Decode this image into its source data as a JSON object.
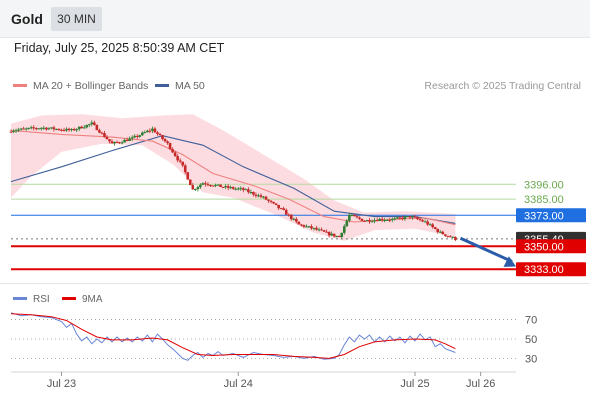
{
  "header": {
    "title": "Gold",
    "timeframe": "30 MIN",
    "timestamp": "Friday, July 25, 2025 8:50:39 AM CET"
  },
  "legend": {
    "ma20_label": "MA 20 + Bollinger Bands",
    "ma50_label": "MA 50",
    "copyright": "Research © 2025 Trading Central",
    "rsi_label": "RSI",
    "rsi_ma_label": "9MA"
  },
  "colors": {
    "up": "#2e7d32",
    "down": "#c62828",
    "ma20": "#f08080",
    "ma50": "#3f5f9a",
    "band": "#fbd0d5",
    "resistance": "#b5d9a0",
    "pivot": "#1f6fe0",
    "support": "#e00000",
    "current": "#303030",
    "rsi": "#6a86d8",
    "rsi_ma": "#e00000"
  },
  "chart_data": [
    {
      "type": "candlestick",
      "title": "Gold",
      "timeframe": "30 MIN",
      "x_ticks": [
        "Jul 23",
        "Jul 24",
        "Jul 25",
        "Jul 26"
      ],
      "close_path": [
        {
          "x": 0,
          "close": 3436
        },
        {
          "x": 6,
          "close": 3438
        },
        {
          "x": 12,
          "close": 3436
        },
        {
          "x": 16,
          "close": 3441
        },
        {
          "x": 20,
          "close": 3426
        },
        {
          "x": 24,
          "close": 3430
        },
        {
          "x": 28,
          "close": 3437
        },
        {
          "x": 31,
          "close": 3426
        },
        {
          "x": 34,
          "close": 3409
        },
        {
          "x": 36,
          "close": 3392
        },
        {
          "x": 38,
          "close": 3397
        },
        {
          "x": 42,
          "close": 3394
        },
        {
          "x": 46,
          "close": 3392
        },
        {
          "x": 50,
          "close": 3386
        },
        {
          "x": 54,
          "close": 3376
        },
        {
          "x": 57,
          "close": 3366
        },
        {
          "x": 60,
          "close": 3363
        },
        {
          "x": 63,
          "close": 3359
        },
        {
          "x": 65,
          "close": 3357
        },
        {
          "x": 67,
          "close": 3373
        },
        {
          "x": 70,
          "close": 3369
        },
        {
          "x": 73,
          "close": 3370
        },
        {
          "x": 76,
          "close": 3370
        },
        {
          "x": 79,
          "close": 3372
        },
        {
          "x": 82,
          "close": 3368
        },
        {
          "x": 85,
          "close": 3360
        },
        {
          "x": 88,
          "close": 3355.49
        }
      ],
      "ma20": [
        {
          "x": 0,
          "y": 3436
        },
        {
          "x": 10,
          "y": 3433
        },
        {
          "x": 20,
          "y": 3431
        },
        {
          "x": 28,
          "y": 3428
        },
        {
          "x": 34,
          "y": 3418
        },
        {
          "x": 40,
          "y": 3404
        },
        {
          "x": 48,
          "y": 3395
        },
        {
          "x": 55,
          "y": 3385
        },
        {
          "x": 62,
          "y": 3372
        },
        {
          "x": 68,
          "y": 3368
        },
        {
          "x": 76,
          "y": 3370
        },
        {
          "x": 82,
          "y": 3371
        },
        {
          "x": 88,
          "y": 3366
        }
      ],
      "ma50": [
        {
          "x": 0,
          "y": 3398
        },
        {
          "x": 10,
          "y": 3409
        },
        {
          "x": 20,
          "y": 3421
        },
        {
          "x": 30,
          "y": 3432
        },
        {
          "x": 38,
          "y": 3425
        },
        {
          "x": 46,
          "y": 3409
        },
        {
          "x": 56,
          "y": 3393
        },
        {
          "x": 64,
          "y": 3376
        },
        {
          "x": 72,
          "y": 3372
        },
        {
          "x": 80,
          "y": 3372
        },
        {
          "x": 88,
          "y": 3367
        }
      ],
      "bollinger_upper": [
        {
          "x": 0,
          "y": 3441
        },
        {
          "x": 6,
          "y": 3447
        },
        {
          "x": 14,
          "y": 3448
        },
        {
          "x": 22,
          "y": 3445
        },
        {
          "x": 30,
          "y": 3447
        },
        {
          "x": 36,
          "y": 3448
        },
        {
          "x": 42,
          "y": 3436
        },
        {
          "x": 50,
          "y": 3418
        },
        {
          "x": 58,
          "y": 3400
        },
        {
          "x": 64,
          "y": 3384
        },
        {
          "x": 70,
          "y": 3375
        },
        {
          "x": 78,
          "y": 3376
        },
        {
          "x": 88,
          "y": 3374
        }
      ],
      "bollinger_lower": [
        {
          "x": 0,
          "y": 3386
        },
        {
          "x": 4,
          "y": 3402
        },
        {
          "x": 10,
          "y": 3420
        },
        {
          "x": 18,
          "y": 3426
        },
        {
          "x": 26,
          "y": 3425
        },
        {
          "x": 32,
          "y": 3411
        },
        {
          "x": 38,
          "y": 3390
        },
        {
          "x": 44,
          "y": 3386
        },
        {
          "x": 52,
          "y": 3374
        },
        {
          "x": 60,
          "y": 3360
        },
        {
          "x": 66,
          "y": 3354
        },
        {
          "x": 72,
          "y": 3362
        },
        {
          "x": 80,
          "y": 3363
        },
        {
          "x": 88,
          "y": 3357
        }
      ],
      "levels": [
        {
          "value": 3396.0,
          "label": "3396.00",
          "kind": "resistance"
        },
        {
          "value": 3385.0,
          "label": "3385.00",
          "kind": "resistance"
        },
        {
          "value": 3373.0,
          "label": "3373.00",
          "kind": "pivot"
        },
        {
          "value": 3355.49,
          "label": "3355.49",
          "kind": "current"
        },
        {
          "value": 3350.0,
          "label": "3350.00",
          "kind": "support"
        },
        {
          "value": 3333.0,
          "label": "3333.00",
          "kind": "support"
        }
      ],
      "forecast_arrow": {
        "from": {
          "x": 89,
          "y": 3356
        },
        "to": {
          "x": 100,
          "y": 3335
        }
      },
      "x_range": [
        0,
        100
      ],
      "y_range": [
        3325,
        3460
      ]
    },
    {
      "type": "line",
      "title": "RSI",
      "y_ticks": [
        70,
        50,
        30
      ],
      "y_range": [
        18,
        84
      ],
      "series": [
        {
          "name": "RSI",
          "values": [
            {
              "x": 0,
              "y": 77
            },
            {
              "x": 2,
              "y": 74
            },
            {
              "x": 4,
              "y": 75
            },
            {
              "x": 6,
              "y": 73
            },
            {
              "x": 8,
              "y": 72
            },
            {
              "x": 10,
              "y": 68
            },
            {
              "x": 11,
              "y": 62
            },
            {
              "x": 12,
              "y": 66
            },
            {
              "x": 13,
              "y": 55
            },
            {
              "x": 14,
              "y": 48
            },
            {
              "x": 15,
              "y": 52
            },
            {
              "x": 16,
              "y": 45
            },
            {
              "x": 17,
              "y": 50
            },
            {
              "x": 18,
              "y": 46
            },
            {
              "x": 19,
              "y": 52
            },
            {
              "x": 20,
              "y": 47
            },
            {
              "x": 21,
              "y": 52
            },
            {
              "x": 22,
              "y": 47
            },
            {
              "x": 23,
              "y": 51
            },
            {
              "x": 24,
              "y": 47
            },
            {
              "x": 25,
              "y": 52
            },
            {
              "x": 26,
              "y": 48
            },
            {
              "x": 27,
              "y": 54
            },
            {
              "x": 28,
              "y": 47
            },
            {
              "x": 29,
              "y": 55
            },
            {
              "x": 30,
              "y": 50
            },
            {
              "x": 31,
              "y": 44
            },
            {
              "x": 32,
              "y": 40
            },
            {
              "x": 33,
              "y": 35
            },
            {
              "x": 34,
              "y": 30
            },
            {
              "x": 35,
              "y": 28
            },
            {
              "x": 36,
              "y": 33
            },
            {
              "x": 37,
              "y": 36
            },
            {
              "x": 38,
              "y": 31
            },
            {
              "x": 39,
              "y": 35
            },
            {
              "x": 40,
              "y": 33
            },
            {
              "x": 41,
              "y": 37
            },
            {
              "x": 42,
              "y": 33
            },
            {
              "x": 44,
              "y": 35
            },
            {
              "x": 46,
              "y": 31
            },
            {
              "x": 48,
              "y": 36
            },
            {
              "x": 50,
              "y": 34
            },
            {
              "x": 52,
              "y": 33
            },
            {
              "x": 54,
              "y": 31
            },
            {
              "x": 56,
              "y": 32
            },
            {
              "x": 58,
              "y": 30
            },
            {
              "x": 60,
              "y": 32
            },
            {
              "x": 62,
              "y": 29
            },
            {
              "x": 64,
              "y": 30
            },
            {
              "x": 65,
              "y": 34
            },
            {
              "x": 66,
              "y": 44
            },
            {
              "x": 67,
              "y": 52
            },
            {
              "x": 68,
              "y": 47
            },
            {
              "x": 69,
              "y": 54
            },
            {
              "x": 70,
              "y": 50
            },
            {
              "x": 71,
              "y": 54
            },
            {
              "x": 72,
              "y": 47
            },
            {
              "x": 73,
              "y": 52
            },
            {
              "x": 74,
              "y": 47
            },
            {
              "x": 75,
              "y": 53
            },
            {
              "x": 76,
              "y": 48
            },
            {
              "x": 77,
              "y": 52
            },
            {
              "x": 78,
              "y": 46
            },
            {
              "x": 79,
              "y": 53
            },
            {
              "x": 80,
              "y": 48
            },
            {
              "x": 81,
              "y": 55
            },
            {
              "x": 82,
              "y": 49
            },
            {
              "x": 83,
              "y": 52
            },
            {
              "x": 84,
              "y": 42
            },
            {
              "x": 85,
              "y": 45
            },
            {
              "x": 86,
              "y": 40
            },
            {
              "x": 87,
              "y": 38
            },
            {
              "x": 88,
              "y": 36
            }
          ]
        },
        {
          "name": "9MA",
          "values": [
            {
              "x": 0,
              "y": 76
            },
            {
              "x": 4,
              "y": 75
            },
            {
              "x": 8,
              "y": 73
            },
            {
              "x": 11,
              "y": 69
            },
            {
              "x": 14,
              "y": 60
            },
            {
              "x": 17,
              "y": 52
            },
            {
              "x": 20,
              "y": 49
            },
            {
              "x": 24,
              "y": 49
            },
            {
              "x": 28,
              "y": 51
            },
            {
              "x": 31,
              "y": 49
            },
            {
              "x": 34,
              "y": 41
            },
            {
              "x": 37,
              "y": 34
            },
            {
              "x": 40,
              "y": 33
            },
            {
              "x": 44,
              "y": 34
            },
            {
              "x": 48,
              "y": 34
            },
            {
              "x": 52,
              "y": 34
            },
            {
              "x": 56,
              "y": 32
            },
            {
              "x": 60,
              "y": 31
            },
            {
              "x": 63,
              "y": 30
            },
            {
              "x": 66,
              "y": 34
            },
            {
              "x": 69,
              "y": 42
            },
            {
              "x": 72,
              "y": 47
            },
            {
              "x": 76,
              "y": 49
            },
            {
              "x": 80,
              "y": 50
            },
            {
              "x": 84,
              "y": 49
            },
            {
              "x": 86,
              "y": 45
            },
            {
              "x": 88,
              "y": 40
            }
          ]
        }
      ]
    }
  ]
}
